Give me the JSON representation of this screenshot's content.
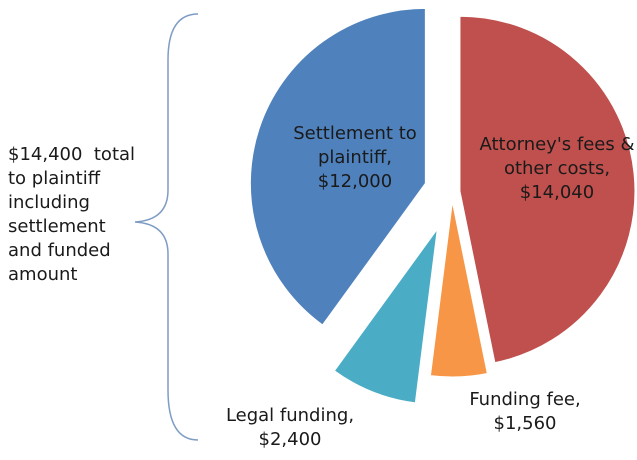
{
  "chart_data": {
    "type": "pie",
    "categories": [
      "Attorney's fees & other costs,",
      "Funding fee,",
      "Legal funding,",
      "Settlement to plaintiff,"
    ],
    "values": [
      14040,
      1560,
      2400,
      12000
    ],
    "value_labels": [
      "$14,040",
      "$1,560",
      "$2,400",
      "$12,000"
    ],
    "colors": [
      "#c0504d",
      "#f79646",
      "#4bacc6",
      "#4f81bd"
    ],
    "annotation": [
      "$14,400  total",
      "to plaintiff",
      "including",
      "settlement",
      "and funded",
      "amount"
    ]
  }
}
